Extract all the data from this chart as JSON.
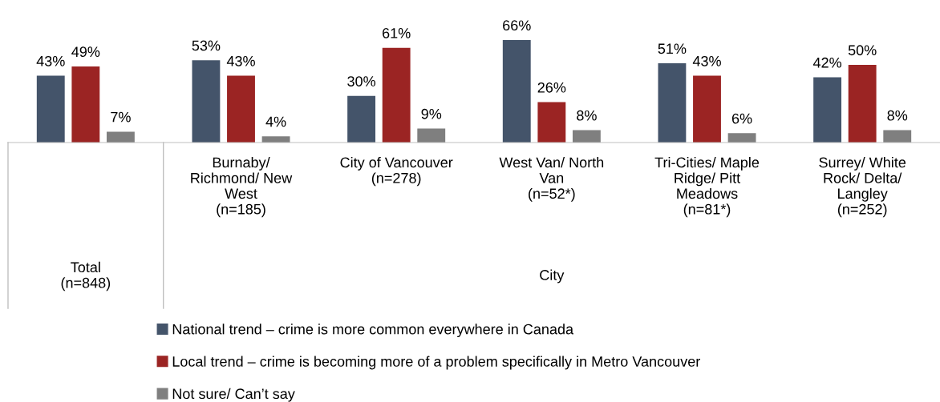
{
  "chart_data": {
    "type": "bar",
    "categories": [
      null,
      "Burnaby/\nRichmond/ New\nWest\n(n=185)",
      "City of Vancouver\n(n=278)",
      "West Van/ North\nVan\n(n=52*)",
      "Tri-Cities/ Maple\nRidge/ Pitt\nMeadows\n(n=81*)",
      "Surrey/ White\nRock/ Delta/\nLangley\n(n=252)"
    ],
    "series": [
      {
        "name": "National trend – crime is more common everywhere in Canada",
        "color": "#44546a",
        "values": [
          43,
          53,
          30,
          66,
          51,
          42
        ],
        "value_labels": [
          "43%",
          "53%",
          "30%",
          "66%",
          "51%",
          "42%"
        ]
      },
      {
        "name": "Local trend – crime is becoming more of a problem specifically in Metro Vancouver",
        "color": "#9b2423",
        "values": [
          49,
          43,
          61,
          26,
          43,
          50
        ],
        "value_labels": [
          "49%",
          "43%",
          "61%",
          "26%",
          "43%",
          "50%"
        ]
      },
      {
        "name": "Not sure/ Can’t say",
        "color": "#7f7f7f",
        "values": [
          7,
          4,
          9,
          8,
          6,
          8
        ],
        "value_labels": [
          "7%",
          "4%",
          "9%",
          "8%",
          "6%",
          "8%"
        ]
      }
    ],
    "annotations": [
      "Total\n(n=848)",
      "City"
    ],
    "legend": "bottom"
  }
}
